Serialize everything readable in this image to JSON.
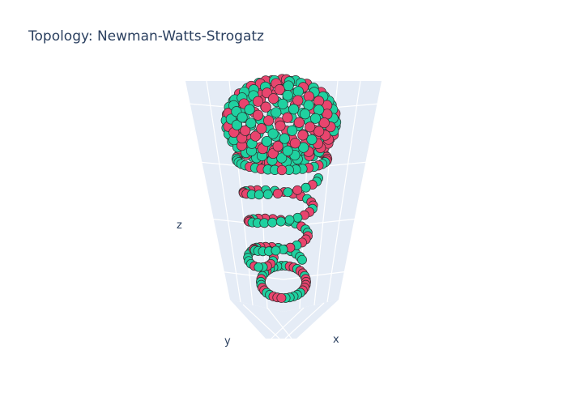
{
  "chart_data": {
    "type": "scatter3d",
    "title": "Topology: Newman-Watts-Strogatz",
    "xlabel": "x",
    "ylabel": "y",
    "zlabel": "z",
    "grid": true,
    "legend": "none",
    "colors": {
      "teal": "#1fd1a0",
      "red": "#e8456e",
      "pane": "#e5ecf6"
    },
    "structure": [
      {
        "name": "sphere",
        "count": 220
      },
      {
        "name": "ring-top",
        "count": 40
      },
      {
        "name": "helix",
        "count": 70
      },
      {
        "name": "ring-bottom",
        "count": 34
      }
    ]
  }
}
